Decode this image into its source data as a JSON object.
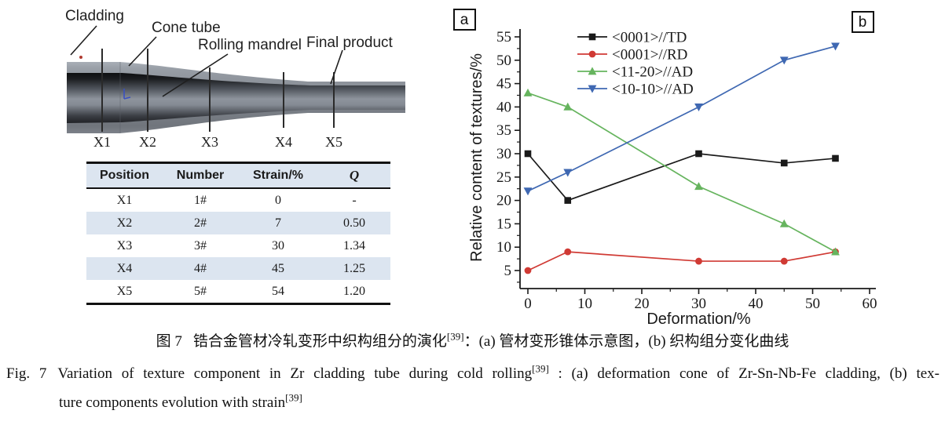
{
  "panel_a": {
    "tag": "a",
    "labels": {
      "cladding": "Cladding",
      "cone_tube": "Cone tube",
      "rolling_mandrel": "Rolling mandrel",
      "final_product": "Final product"
    },
    "markers": [
      "X1",
      "X2",
      "X3",
      "X4",
      "X5"
    ],
    "table": {
      "columns": [
        "Position",
        "Number",
        "Strain/%",
        "Q"
      ],
      "rows": [
        [
          "X1",
          "1#",
          "0",
          "-"
        ],
        [
          "X2",
          "2#",
          "7",
          "0.50"
        ],
        [
          "X3",
          "3#",
          "30",
          "1.34"
        ],
        [
          "X4",
          "4#",
          "45",
          "1.25"
        ],
        [
          "X5",
          "5#",
          "54",
          "1.20"
        ]
      ],
      "shaded_row_indexes": [
        1,
        3
      ],
      "shade_color": "#dce5f0"
    }
  },
  "panel_b": {
    "tag": "b"
  },
  "chart_data": {
    "type": "line",
    "x": [
      0,
      7,
      30,
      45,
      54
    ],
    "series": [
      {
        "name": "<0001>//TD",
        "color": "#1a1a1a",
        "marker": "square",
        "values": [
          30,
          20,
          30,
          28,
          29
        ]
      },
      {
        "name": "<0001>//RD",
        "color": "#d03a34",
        "marker": "circle",
        "values": [
          5,
          9,
          7,
          7,
          9
        ]
      },
      {
        "name": "<11-20>//AD",
        "color": "#66b45e",
        "marker": "triangle-up",
        "values": [
          43,
          40,
          23,
          15,
          9
        ]
      },
      {
        "name": "<10-10>//AD",
        "color": "#3f68b2",
        "marker": "triangle-down",
        "values": [
          22,
          26,
          40,
          50,
          53
        ]
      }
    ],
    "xlabel": "Deformation/%",
    "ylabel": "Relative content of textures/%",
    "x_ticks": [
      0,
      10,
      20,
      30,
      40,
      50,
      60
    ],
    "y_ticks": [
      5,
      10,
      15,
      20,
      25,
      30,
      35,
      40,
      45,
      50,
      55
    ],
    "xlim": [
      -2,
      61
    ],
    "ylim": [
      2,
      57
    ],
    "grid": false,
    "legend_position": "top-center-inside"
  },
  "caption": {
    "zh": {
      "fig_label": "图 7",
      "main": "锆合金管材冷轧变形中织构组分的演化",
      "ref": "[39]",
      "rest": "：(a) 管材变形锥体示意图，(b) 织构组分变化曲线"
    },
    "en": {
      "fig_label": "Fig. 7",
      "line1_main": "Variation of texture component in Zr cladding tube during cold rolling",
      "ref1": "[39]",
      "line1_rest": " : (a) deformation cone of Zr-Sn-Nb-Fe cladding, (b) tex-",
      "line2_main": "ture components evolution with strain",
      "ref2": "[39]"
    }
  }
}
